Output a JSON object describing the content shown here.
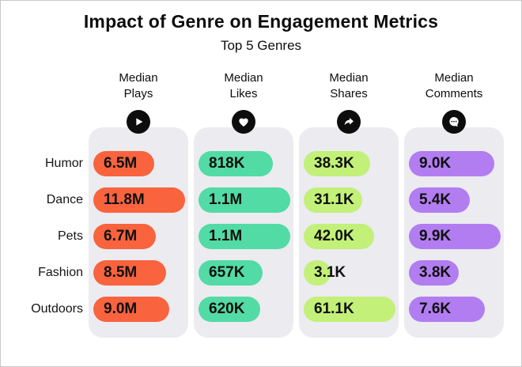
{
  "header": {
    "title": "Impact of Genre on Engagement Metrics",
    "subtitle": "Top 5 Genres"
  },
  "colors": {
    "background": "#ffffff",
    "column_panel": "#ebebf0",
    "icon_circle": "#0d0d0d",
    "text": "#111111"
  },
  "chart_data": {
    "type": "bar",
    "layout": "pill-width-table, one gray panel per metric column, pill width proportional to value with circular minimum",
    "title": "Impact of Genre on Engagement Metrics",
    "subtitle": "Top 5 Genres",
    "categories": [
      "Humor",
      "Dance",
      "Pets",
      "Fashion",
      "Outdoors"
    ],
    "series": [
      {
        "name": "Median Plays",
        "header_line1": "Median",
        "header_line2": "Plays",
        "icon": "play-icon",
        "color": "#f9633e",
        "values": [
          6500000,
          11800000,
          6700000,
          8500000,
          9000000
        ],
        "labels": [
          "6.5M",
          "11.8M",
          "6.7M",
          "8.5M",
          "9.0M"
        ]
      },
      {
        "name": "Median Likes",
        "header_line1": "Median",
        "header_line2": "Likes",
        "icon": "heart-icon",
        "color": "#52dba4",
        "values": [
          818000,
          1100000,
          1100000,
          657000,
          620000
        ],
        "labels": [
          "818K",
          "1.1M",
          "1.1M",
          "657K",
          "620K"
        ]
      },
      {
        "name": "Median Shares",
        "header_line1": "Median",
        "header_line2": "Shares",
        "icon": "share-icon",
        "color": "#c3f078",
        "values": [
          38300,
          31100,
          42000,
          3100,
          61100
        ],
        "labels": [
          "38.3K",
          "31.1K",
          "42.0K",
          "3.1K",
          "61.1K"
        ]
      },
      {
        "name": "Median Comments",
        "header_line1": "Median",
        "header_line2": "Comments",
        "icon": "comment-icon",
        "color": "#b27df0",
        "values": [
          9000,
          5400,
          9900,
          3800,
          7600
        ],
        "labels": [
          "9.0K",
          "5.4K",
          "9.9K",
          "3.8K",
          "7.6K"
        ]
      }
    ],
    "legend": false,
    "grid": false
  }
}
